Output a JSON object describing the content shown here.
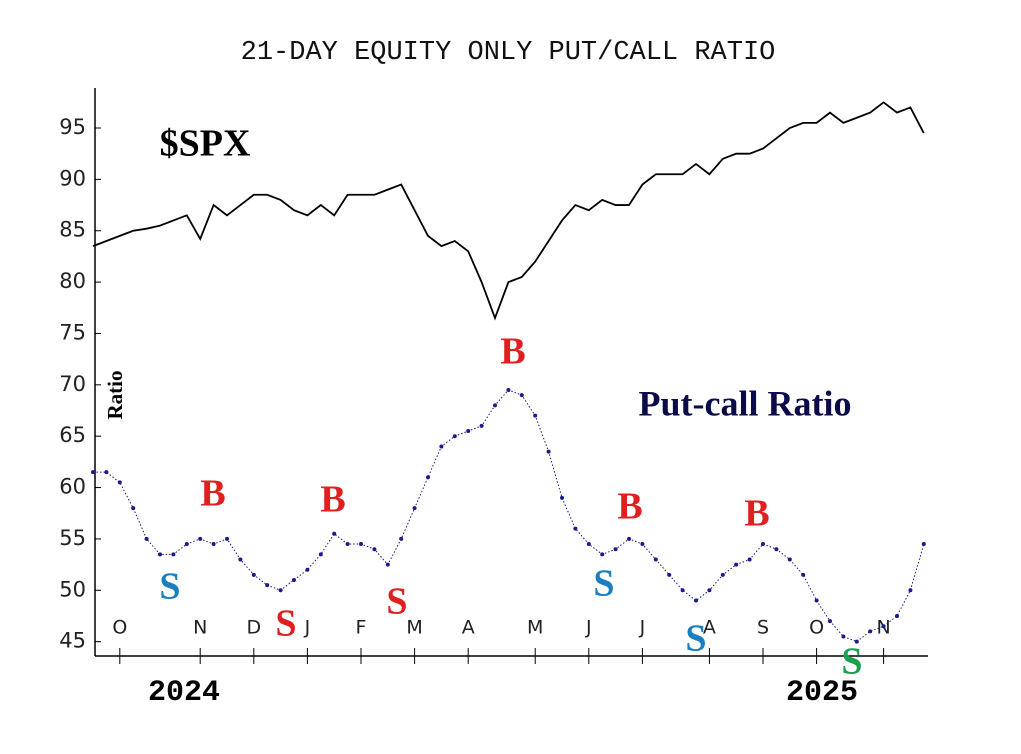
{
  "chart_data": {
    "type": "line",
    "title": "21-DAY EQUITY ONLY PUT/CALL RATIO",
    "y_label": "Ratio",
    "categories": [
      null,
      null,
      "O",
      null,
      null,
      null,
      null,
      null,
      "N",
      null,
      null,
      null,
      "D",
      null,
      null,
      null,
      "J",
      null,
      null,
      null,
      "F",
      null,
      null,
      null,
      "M",
      null,
      null,
      null,
      "A",
      null,
      null,
      null,
      null,
      "M",
      null,
      null,
      null,
      "J",
      null,
      null,
      null,
      "J",
      null,
      null,
      null,
      null,
      "A",
      null,
      null,
      null,
      "S",
      null,
      null,
      null,
      "O",
      null,
      null,
      null,
      null,
      "N",
      null,
      null,
      null
    ],
    "years": [
      "2024",
      "2025"
    ],
    "series": [
      {
        "name": "$SPX",
        "color": "#000000",
        "values": [
          83.5,
          84,
          84.5,
          85,
          85.2,
          85.5,
          86,
          86.5,
          84.2,
          87.5,
          86.5,
          87.5,
          88.5,
          88.5,
          88,
          87,
          86.5,
          87.5,
          86.5,
          88.5,
          88.5,
          88.5,
          89,
          89.5,
          87,
          84.5,
          83.5,
          84,
          83,
          80,
          76.5,
          80,
          80.5,
          82,
          84,
          86,
          87.5,
          87,
          88,
          87.5,
          87.5,
          89.5,
          90.5,
          90.5,
          90.5,
          91.5,
          90.5,
          92,
          92.5,
          92.5,
          93,
          94,
          95,
          95.5,
          95.5,
          96.5,
          95.5,
          96,
          96.5,
          97.5,
          96.5,
          97,
          94.5
        ]
      },
      {
        "name": "Put-call Ratio",
        "color": "#1a1a8c",
        "values": [
          61.5,
          61.5,
          60.5,
          58,
          55,
          53.5,
          53.5,
          54.5,
          55,
          54.5,
          55,
          53,
          51.5,
          50.5,
          50,
          51,
          52,
          53.5,
          55.5,
          54.5,
          54.5,
          54,
          52.5,
          55,
          58,
          61,
          64,
          65,
          65.5,
          66,
          68,
          69.5,
          69,
          67,
          63.5,
          59,
          56,
          54.5,
          53.5,
          54,
          55,
          54.5,
          53,
          51.5,
          50,
          49,
          50,
          51.5,
          52.5,
          53,
          54.5,
          54,
          53,
          51.5,
          49,
          47,
          45.5,
          45,
          46,
          46.5,
          47.5,
          50,
          54.5
        ]
      }
    ],
    "annotations": [
      {
        "text": "B",
        "color": "#e02020"
      },
      {
        "text": "B",
        "color": "#e02020"
      },
      {
        "text": "B",
        "color": "#e02020"
      },
      {
        "text": "B",
        "color": "#e02020"
      },
      {
        "text": "B",
        "color": "#e02020"
      },
      {
        "text": "S",
        "color": "#1a7fbf"
      },
      {
        "text": "S",
        "color": "#e02020"
      },
      {
        "text": "S",
        "color": "#e02020"
      },
      {
        "text": "S",
        "color": "#1a7fbf"
      },
      {
        "text": "S",
        "color": "#1a7fbf"
      },
      {
        "text": "S",
        "color": "#1aa050"
      }
    ],
    "ylim": [
      43.7,
      98.7
    ],
    "yticks": [
      45,
      50,
      55,
      60,
      65,
      70,
      75,
      80,
      85,
      90,
      95
    ]
  }
}
